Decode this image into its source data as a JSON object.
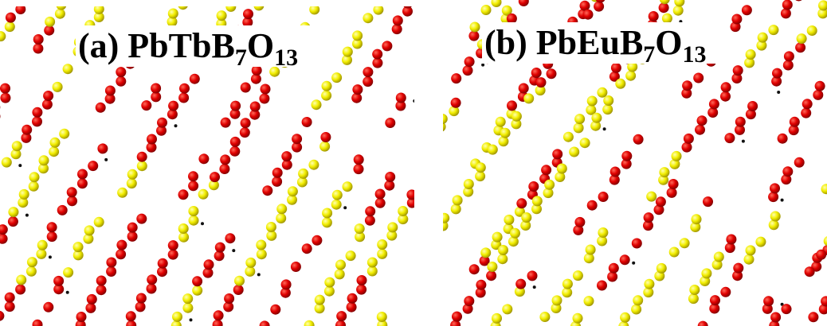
{
  "panels": [
    {
      "label": {
        "main": "(a) PbTbB",
        "sub1": "7",
        "mid": "O",
        "sub2": "13"
      }
    },
    {
      "label": {
        "main": "(b) PbEuB",
        "sub1": "7",
        "mid": "O",
        "sub2": "13"
      }
    }
  ]
}
